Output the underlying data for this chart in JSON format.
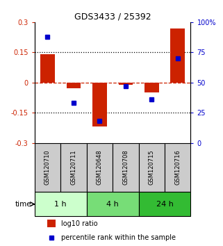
{
  "title": "GDS3433 / 25392",
  "samples": [
    "GSM120710",
    "GSM120711",
    "GSM120648",
    "GSM120708",
    "GSM120715",
    "GSM120716"
  ],
  "log10_ratio": [
    0.14,
    -0.03,
    -0.22,
    -0.01,
    -0.05,
    0.27
  ],
  "percentile_rank": [
    88,
    33,
    18,
    47,
    36,
    70
  ],
  "ylim_left": [
    -0.3,
    0.3
  ],
  "ylim_right": [
    0,
    100
  ],
  "yticks_left": [
    -0.3,
    -0.15,
    0,
    0.15,
    0.3
  ],
  "yticks_right": [
    0,
    25,
    50,
    75,
    100
  ],
  "ytick_labels_left": [
    "-0.3",
    "-0.15",
    "0",
    "0.15",
    "0.3"
  ],
  "ytick_labels_right": [
    "0",
    "25",
    "50",
    "75",
    "100%"
  ],
  "hlines_dotted": [
    -0.15,
    0.15
  ],
  "hline_dashed_color": "#cc2200",
  "bar_color": "#cc2200",
  "dot_color": "#0000cc",
  "time_groups": [
    {
      "label": "1 h",
      "samples": [
        0,
        1
      ],
      "color": "#ccffcc"
    },
    {
      "label": "4 h",
      "samples": [
        2,
        3
      ],
      "color": "#77dd77"
    },
    {
      "label": "24 h",
      "samples": [
        4,
        5
      ],
      "color": "#33bb33"
    }
  ],
  "bar_width": 0.55,
  "dot_size": 5,
  "label_box_color": "#cccccc",
  "fig_width": 3.21,
  "fig_height": 3.54,
  "dpi": 100
}
